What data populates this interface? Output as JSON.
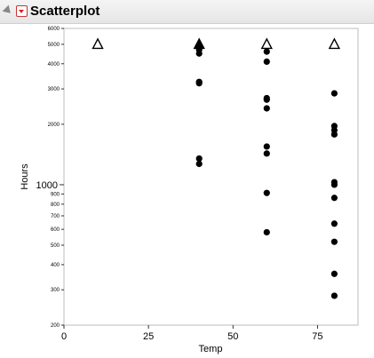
{
  "header": {
    "title": "Scatterplot"
  },
  "chart_data": {
    "type": "scatter",
    "title": "",
    "xlabel": "Temp",
    "ylabel": "Hours",
    "xlim": [
      0,
      87
    ],
    "ylim": [
      200,
      6000
    ],
    "yscale": "log",
    "x_ticks": [
      0,
      25,
      50,
      75
    ],
    "y_ticks": [
      200,
      300,
      400,
      500,
      600,
      700,
      800,
      900,
      1000,
      2000,
      3000,
      4000,
      5000,
      6000
    ],
    "grid": false,
    "series": [
      {
        "marker": "circle",
        "points": [
          [
            40,
            4700
          ],
          [
            40,
            4500
          ],
          [
            40,
            3250
          ],
          [
            40,
            3200
          ],
          [
            40,
            1350
          ],
          [
            40,
            1270
          ],
          [
            60,
            4600
          ],
          [
            60,
            4100
          ],
          [
            60,
            2700
          ],
          [
            60,
            2650
          ],
          [
            60,
            2400
          ],
          [
            60,
            1550
          ],
          [
            60,
            1430
          ],
          [
            60,
            910
          ],
          [
            60,
            580
          ],
          [
            80,
            2850
          ],
          [
            80,
            1960
          ],
          [
            80,
            1870
          ],
          [
            80,
            1780
          ],
          [
            80,
            1030
          ],
          [
            80,
            1000
          ],
          [
            80,
            860
          ],
          [
            80,
            640
          ],
          [
            80,
            520
          ],
          [
            80,
            360
          ],
          [
            80,
            280
          ]
        ]
      },
      {
        "marker": "triangle-open",
        "points": [
          [
            10,
            5000
          ],
          [
            60,
            5000
          ],
          [
            80,
            5000
          ]
        ]
      },
      {
        "marker": "triangle-filled",
        "points": [
          [
            40,
            5000
          ]
        ]
      }
    ]
  }
}
